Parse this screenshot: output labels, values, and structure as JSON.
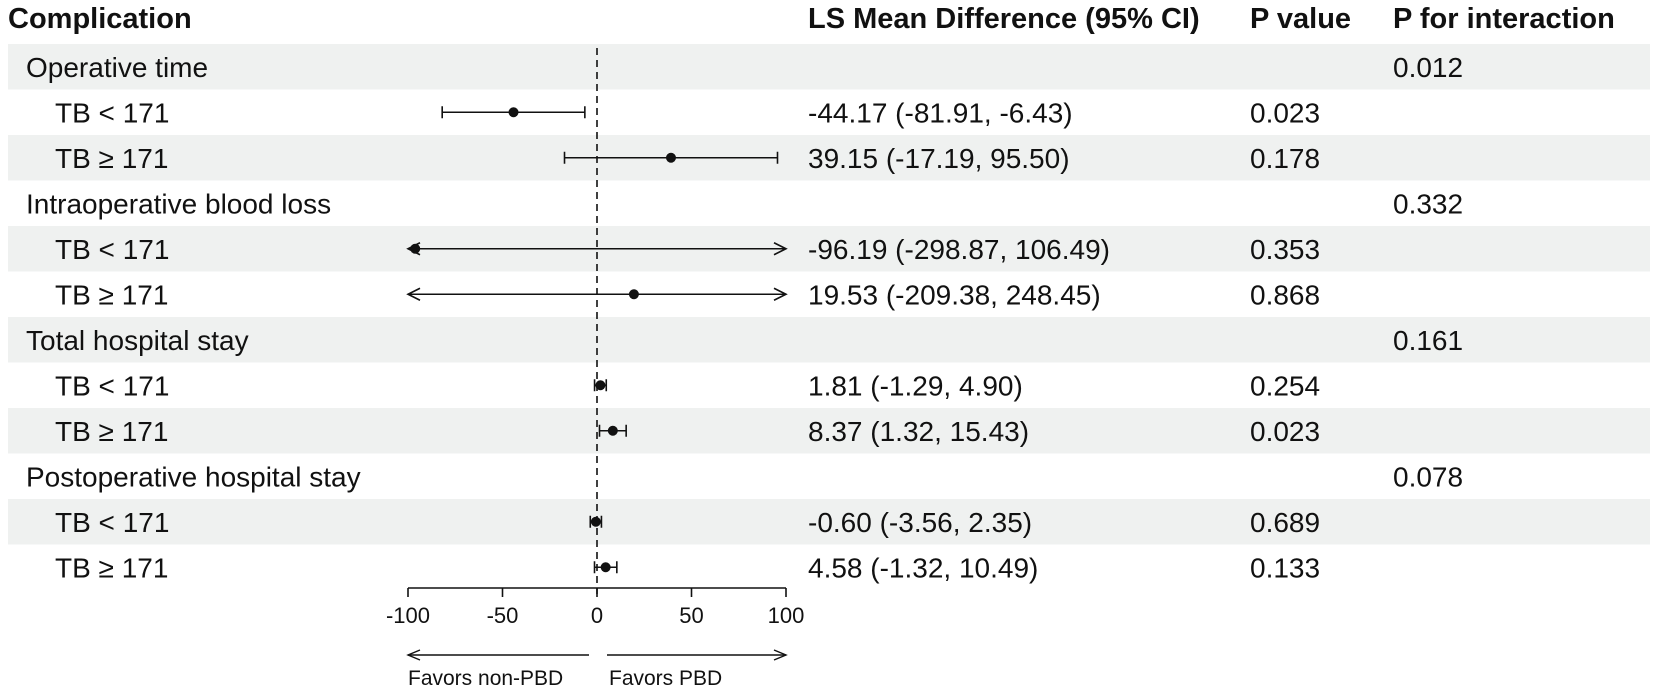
{
  "chart_data": {
    "type": "forest",
    "headers": {
      "label": "Complication",
      "estimate": "LS Mean Difference (95% CI)",
      "p": "P value",
      "p_interaction": "P for interaction"
    },
    "x_axis": {
      "range": [
        -100,
        100
      ],
      "ticks": [
        -100,
        -50,
        0,
        50,
        100
      ],
      "reference": 0
    },
    "favors": {
      "left": "Favors non-PBD",
      "right": "Favors PBD"
    },
    "rows": [
      {
        "kind": "group",
        "label": "Operative time",
        "p_interaction": "0.012"
      },
      {
        "kind": "sub",
        "label": "TB < 171",
        "mean": -44.17,
        "lower": -81.91,
        "upper": -6.43,
        "text": "-44.17 (-81.91, -6.43)",
        "p": "0.023"
      },
      {
        "kind": "sub",
        "label": "TB ≥ 171",
        "mean": 39.15,
        "lower": -17.19,
        "upper": 95.5,
        "text": "39.15 (-17.19, 95.50)",
        "p": "0.178"
      },
      {
        "kind": "group",
        "label": "Intraoperative blood loss",
        "p_interaction": "0.332"
      },
      {
        "kind": "sub",
        "label": "TB < 171",
        "mean": -96.19,
        "lower": -298.87,
        "upper": 106.49,
        "text": "-96.19 (-298.87, 106.49)",
        "p": "0.353"
      },
      {
        "kind": "sub",
        "label": "TB ≥ 171",
        "mean": 19.53,
        "lower": -209.38,
        "upper": 248.45,
        "text": "19.53 (-209.38, 248.45)",
        "p": "0.868"
      },
      {
        "kind": "group",
        "label": "Total hospital stay",
        "p_interaction": "0.161"
      },
      {
        "kind": "sub",
        "label": "TB < 171",
        "mean": 1.81,
        "lower": -1.29,
        "upper": 4.9,
        "text": "1.81 (-1.29, 4.90)",
        "p": "0.254"
      },
      {
        "kind": "sub",
        "label": "TB ≥ 171",
        "mean": 8.37,
        "lower": 1.32,
        "upper": 15.43,
        "text": "8.37 (1.32, 15.43)",
        "p": "0.023"
      },
      {
        "kind": "group",
        "label": "Postoperative hospital stay",
        "p_interaction": "0.078"
      },
      {
        "kind": "sub",
        "label": "TB < 171",
        "mean": -0.6,
        "lower": -3.56,
        "upper": 2.35,
        "text": "-0.60 (-3.56, 2.35)",
        "p": "0.689"
      },
      {
        "kind": "sub",
        "label": "TB ≥ 171",
        "mean": 4.58,
        "lower": -1.32,
        "upper": 10.49,
        "text": "4.58 (-1.32, 10.49)",
        "p": "0.133"
      }
    ],
    "colors": {
      "stripe": "#eff1f0",
      "ink": "#111111"
    }
  }
}
